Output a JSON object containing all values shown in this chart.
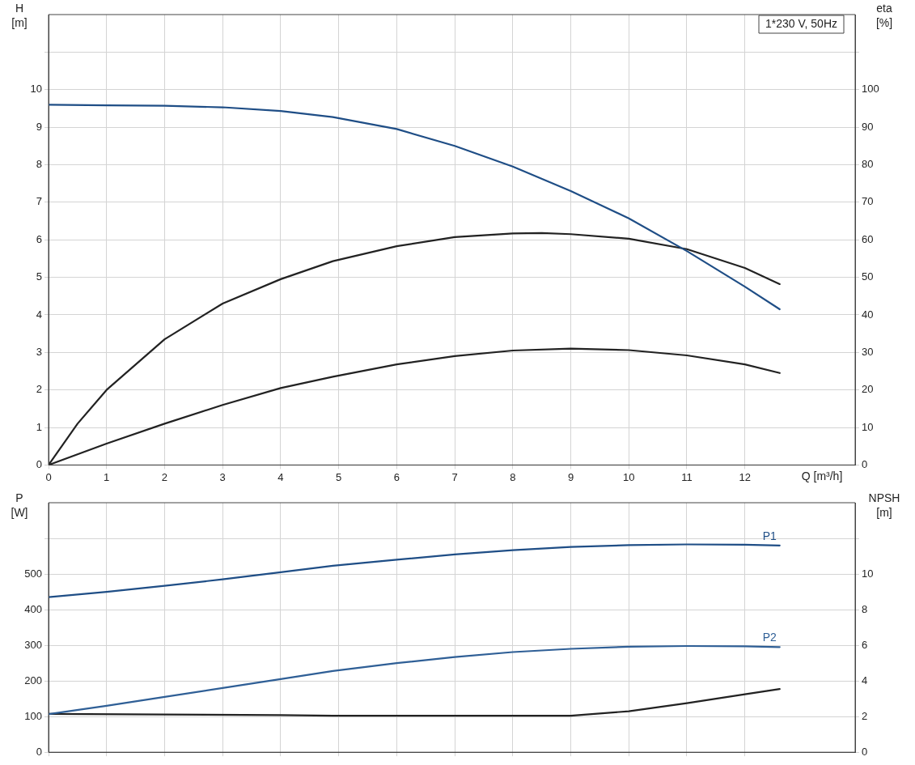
{
  "chart_data": [
    {
      "type": "line",
      "ylabel": "H\n[m]",
      "y2label": "eta\n[%]",
      "xlabel": "Q [m³/h]",
      "annotations": [
        "1*230 V, 50Hz"
      ],
      "xlim": [
        0,
        13.9
      ],
      "xticks": [
        0,
        1,
        2,
        3,
        4,
        5,
        6,
        7,
        8,
        9,
        10,
        11,
        12
      ],
      "ylim": [
        0,
        12
      ],
      "yticks": [
        0,
        1,
        2,
        3,
        4,
        5,
        6,
        7,
        8,
        9,
        10,
        {
          "value": 11,
          "label": null
        }
      ],
      "y2lim": [
        0,
        120
      ],
      "y2ticks": [
        0,
        10,
        20,
        30,
        40,
        50,
        60,
        70,
        80,
        90,
        100,
        {
          "value": 110,
          "label": null
        }
      ],
      "grid": true,
      "legend": false,
      "marker": "none",
      "line_style": "solid",
      "series": [
        {
          "color": "#1f4e86",
          "axis": "y",
          "x": [
            0,
            1,
            2,
            3,
            4,
            4.9,
            6,
            7,
            8,
            9,
            10,
            11,
            12,
            12.6
          ],
          "values": [
            9.6,
            9.58,
            9.57,
            9.53,
            9.43,
            9.27,
            8.95,
            8.5,
            7.95,
            7.3,
            6.57,
            5.7,
            4.75,
            4.15
          ]
        },
        {
          "color": "#222222",
          "axis": "y2",
          "x": [
            0,
            0.5,
            1,
            2,
            3,
            4,
            4.9,
            6,
            7,
            8,
            8.5,
            9,
            10,
            11,
            12,
            12.6
          ],
          "values": [
            0,
            11,
            20,
            33.5,
            43,
            49.5,
            54.3,
            58.3,
            60.7,
            61.7,
            61.8,
            61.5,
            60.3,
            57.5,
            52.5,
            48.2
          ]
        },
        {
          "color": "#222222",
          "axis": "y2",
          "x": [
            0,
            1,
            2,
            3,
            4,
            4.9,
            6,
            7,
            8,
            9,
            10,
            11,
            12,
            12.6
          ],
          "values": [
            0,
            5.7,
            11,
            16,
            20.5,
            23.5,
            26.8,
            29,
            30.5,
            31,
            30.6,
            29.2,
            26.8,
            24.5
          ]
        }
      ]
    },
    {
      "type": "line",
      "ylabel": "P\n[W]",
      "y2label": "NPSH\n[m]",
      "xlim": [
        0,
        13.9
      ],
      "xticks": [
        0,
        1,
        2,
        3,
        4,
        5,
        6,
        7,
        8,
        9,
        10,
        11,
        12
      ],
      "ylim": [
        0,
        700
      ],
      "yticks": [
        0,
        100,
        200,
        300,
        400,
        500,
        {
          "value": 600,
          "label": null
        }
      ],
      "y2lim": [
        0,
        14
      ],
      "y2ticks": [
        0,
        2,
        4,
        6,
        8,
        10,
        {
          "value": 12,
          "label": null
        }
      ],
      "tick_labels": "y",
      "grid": true,
      "legend": false,
      "marker": "none",
      "line_style": "solid",
      "series": [
        {
          "name": "P1",
          "color": "#1f4e86",
          "axis": "y",
          "x": [
            0,
            1,
            2,
            3,
            4,
            4.9,
            6,
            7,
            8,
            9,
            10,
            11,
            12,
            12.6
          ],
          "values": [
            435,
            450,
            467,
            485,
            505,
            523,
            540,
            555,
            567,
            576,
            581,
            583,
            582,
            580
          ]
        },
        {
          "name": "P2",
          "color": "#2f5f96",
          "axis": "y",
          "x": [
            0,
            1,
            2,
            3,
            4,
            4.9,
            6,
            7,
            8,
            9,
            10,
            11,
            12,
            12.6
          ],
          "values": [
            107,
            130,
            155,
            180,
            205,
            228,
            250,
            267,
            281,
            290,
            296,
            298,
            297,
            295
          ]
        },
        {
          "color": "#222222",
          "axis": "y2",
          "x": [
            0,
            2,
            4,
            4.9,
            6,
            7,
            8,
            9,
            10,
            11,
            12,
            12.6
          ],
          "values": [
            2.15,
            2.12,
            2.08,
            2.05,
            2.05,
            2.05,
            2.05,
            2.05,
            2.3,
            2.75,
            3.25,
            3.55
          ]
        }
      ]
    }
  ]
}
